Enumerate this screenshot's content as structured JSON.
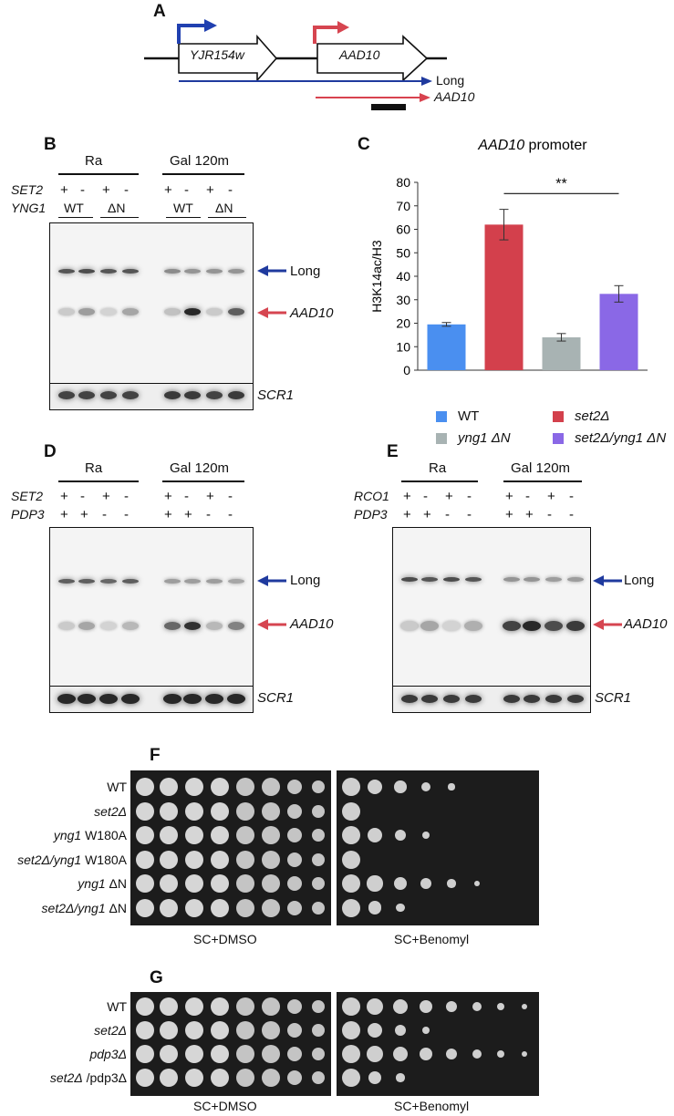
{
  "panels": {
    "A": {
      "label": "A",
      "genes": [
        "YJR154w",
        "AAD10"
      ],
      "transcripts": [
        "Long",
        "AAD10"
      ],
      "colors": {
        "long": "#1f3a9e",
        "aad10": "#d8434f"
      }
    },
    "B": {
      "label": "B",
      "conditions": [
        "Ra",
        "Gal 120m"
      ],
      "row1_name": "SET2",
      "row1_signs": [
        "+",
        "-",
        "+",
        "-",
        "+",
        "-",
        "+",
        "-"
      ],
      "row2_name": "YNG1",
      "row2_groups": [
        "WT",
        "ΔN",
        "WT",
        "ΔN"
      ],
      "arrows": [
        "Long",
        "AAD10"
      ],
      "loading": "SCR1"
    },
    "C": {
      "label": "C",
      "legend": [
        {
          "name": "WT",
          "italic": false,
          "color": "#4a8ff0"
        },
        {
          "name": "set2Δ",
          "italic": true,
          "color": "#d3404c"
        },
        {
          "name": "yng1 ΔN",
          "italic": true,
          "color": "#a8b3b3"
        },
        {
          "name": "set2Δ/yng1 ΔN",
          "italic": true,
          "color": "#8a68e6"
        }
      ],
      "significance": "**"
    },
    "D": {
      "label": "D",
      "conditions": [
        "Ra",
        "Gal 120m"
      ],
      "row1_name": "SET2",
      "row1_signs": [
        "+",
        "-",
        "+",
        "-",
        "+",
        "-",
        "+",
        "-"
      ],
      "row2_name": "PDP3",
      "row2_signs": [
        "+",
        "+",
        "-",
        "-",
        "+",
        "+",
        "-",
        "-"
      ],
      "arrows": [
        "Long",
        "AAD10"
      ],
      "loading": "SCR1"
    },
    "E": {
      "label": "E",
      "conditions": [
        "Ra",
        "Gal 120m"
      ],
      "row1_name": "RCO1",
      "row1_signs": [
        "+",
        "-",
        "+",
        "-",
        "+",
        "-",
        "+",
        "-"
      ],
      "row2_name": "PDP3",
      "row2_signs": [
        "+",
        "+",
        "-",
        "-",
        "+",
        "+",
        "-",
        "-"
      ],
      "arrows": [
        "Long",
        "AAD10"
      ],
      "loading": "SCR1"
    },
    "F": {
      "label": "F",
      "strains": [
        "WT",
        "set2Δ",
        "yng1 W180A",
        "set2Δ/yng1 W180A",
        "yng1 ΔN",
        "set2Δ/yng1 ΔN"
      ],
      "media": [
        "SC+DMSO",
        "SC+Benomyl"
      ],
      "benomyl_growth": [
        5,
        1,
        4,
        1,
        6,
        3
      ]
    },
    "G": {
      "label": "G",
      "strains": [
        "WT",
        "set2Δ",
        "pdp3Δ",
        "set2Δ /pdp3Δ"
      ],
      "media": [
        "SC+DMSO",
        "SC+Benomyl"
      ],
      "benomyl_growth": [
        8,
        4,
        8,
        3
      ]
    }
  },
  "chart_data": {
    "type": "bar",
    "title": "AAD10 promoter",
    "ylabel": "H3K14ac/H3",
    "xlabel": "",
    "ylim": [
      0,
      80
    ],
    "yticks": [
      0,
      10,
      20,
      30,
      40,
      50,
      60,
      70,
      80
    ],
    "categories": [
      "WT",
      "set2Δ",
      "yng1 ΔN",
      "set2Δ/yng1 ΔN"
    ],
    "values": [
      19.5,
      62,
      14,
      32.5
    ],
    "errors": [
      0.8,
      6.5,
      1.6,
      3.5
    ],
    "colors": [
      "#4a8ff0",
      "#d3404c",
      "#a8b3b3",
      "#8a68e6"
    ],
    "significance": {
      "from": 1,
      "to": 3,
      "label": "**",
      "y": 76
    }
  }
}
